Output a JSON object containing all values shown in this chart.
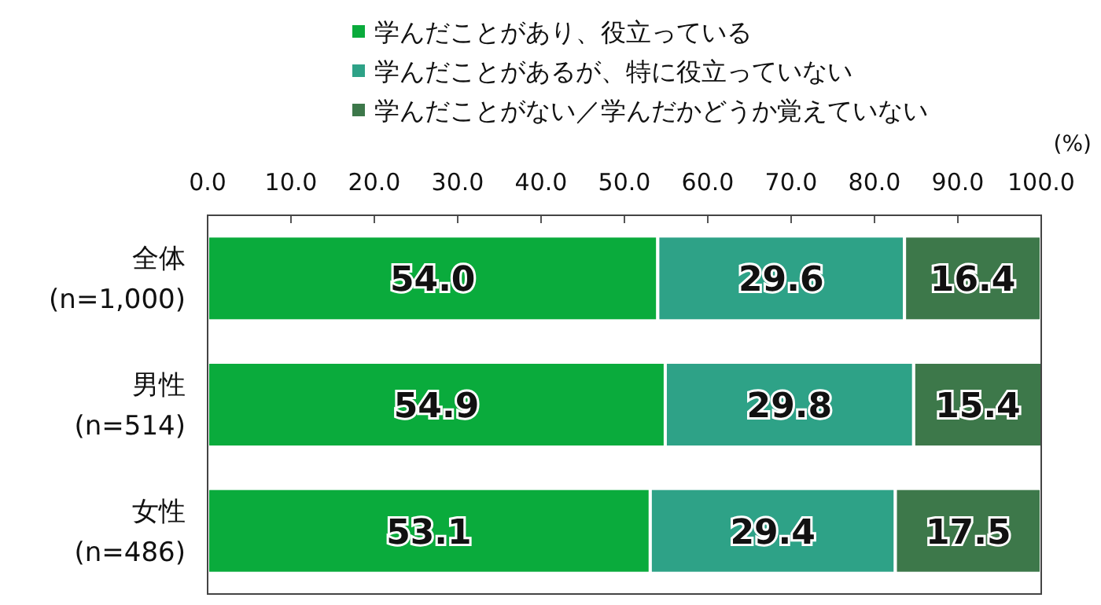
{
  "chart_data": {
    "type": "bar",
    "orientation": "horizontal",
    "stacked": true,
    "legend": "top",
    "grid": false,
    "categories": [
      "全体\n(n=1,000)",
      "男性\n(n=514)",
      "女性\n(n=486)"
    ],
    "series": [
      {
        "name": "学んだことがあり、役立っている",
        "color": "#0aab3c",
        "values": [
          54.0,
          54.9,
          53.1
        ],
        "value_labels": [
          "54.0",
          "54.9",
          "53.1"
        ]
      },
      {
        "name": "学んだことがあるが、特に役立っていない",
        "color": "#2ea287",
        "values": [
          29.6,
          29.8,
          29.4
        ],
        "value_labels": [
          "29.6",
          "29.8",
          "29.4"
        ]
      },
      {
        "name": "学んだことがない／学んだかどうか覚えていない",
        "color": "#3d784a",
        "values": [
          16.4,
          15.4,
          17.5
        ],
        "value_labels": [
          "16.4",
          "15.4",
          "17.5"
        ]
      }
    ],
    "xlim": [
      0,
      100
    ],
    "xticks": [
      {
        "value": 0,
        "label": "0.0"
      },
      {
        "value": 10,
        "label": "10.0"
      },
      {
        "value": 20,
        "label": "20.0"
      },
      {
        "value": 30,
        "label": "30.0"
      },
      {
        "value": 40,
        "label": "40.0"
      },
      {
        "value": 50,
        "label": "50.0"
      },
      {
        "value": 60,
        "label": "60.0"
      },
      {
        "value": 70,
        "label": "70.0"
      },
      {
        "value": 80,
        "label": "80.0"
      },
      {
        "value": 90,
        "label": "90.0"
      },
      {
        "value": 100,
        "label": "100.0"
      }
    ],
    "annotations": [
      "(%)"
    ]
  }
}
